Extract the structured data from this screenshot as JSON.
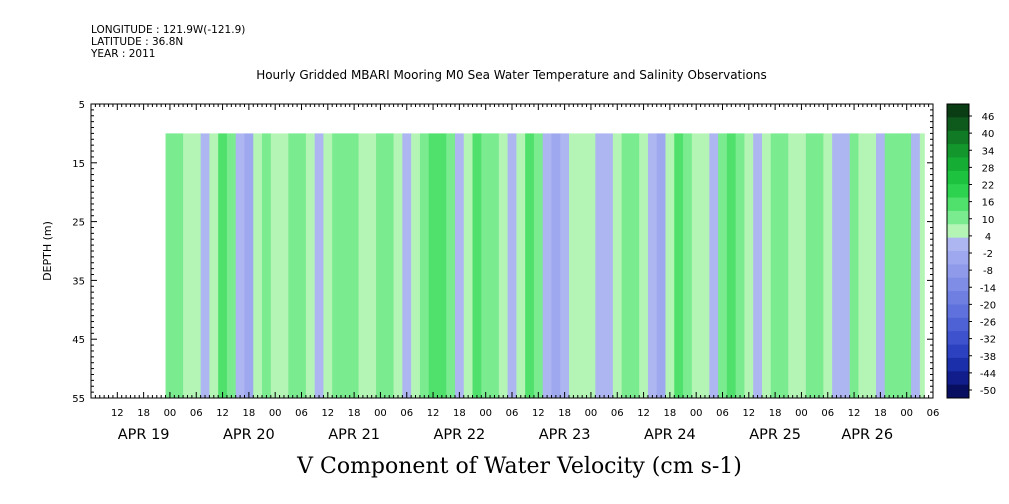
{
  "header": {
    "longitude": "LONGITUDE : 121.9W(-121.9)",
    "latitude": "LATITUDE : 36.8N",
    "year": "YEAR : 2011"
  },
  "chart_data": {
    "type": "heatmap",
    "title": "Hourly Gridded MBARI Mooring M0 Sea Water Temperature and Salinity Observations",
    "xlabel": "V Component of Water Velocity (cm s-1)",
    "ylabel": "DEPTH (m)",
    "ylim": [
      5,
      55
    ],
    "y_reversed": true,
    "y_ticks": [
      "5",
      "15",
      "25",
      "35",
      "45",
      "55"
    ],
    "hour_tick_labels": [
      "12",
      "18",
      "00",
      "06",
      "12",
      "18",
      "00",
      "06",
      "12",
      "18",
      "00",
      "06",
      "12",
      "18",
      "00",
      "06",
      "12",
      "18",
      "00",
      "06",
      "12",
      "18",
      "00",
      "06",
      "12",
      "18",
      "00",
      "06",
      "12",
      "18",
      "00",
      "06"
    ],
    "day_labels": [
      "APR 19",
      "APR 20",
      "APR 21",
      "APR 22",
      "APR 23",
      "APR 24",
      "APR 25",
      "APR 26"
    ],
    "time_range_hours": [
      0,
      192
    ],
    "data_time_range_hours": [
      17,
      190
    ],
    "data_depth_range": [
      10,
      55
    ],
    "colorbar": {
      "levels": [
        "46",
        "40",
        "34",
        "28",
        "22",
        "16",
        "10",
        "4",
        "-2",
        "-8",
        "-14",
        "-20",
        "-26",
        "-32",
        "-38",
        "-44",
        "-50"
      ],
      "range": [
        -50,
        50
      ],
      "positive_colors": [
        "#0a3d14",
        "#0e5a1c",
        "#117a24",
        "#13962c",
        "#16ad34",
        "#1dc33e",
        "#2dd24f",
        "#50e06c",
        "#7aeb8f",
        "#b4f5b6"
      ],
      "negative_colors": [
        "#aeb6f2",
        "#9ea8ee",
        "#8f9bea",
        "#7f8de6",
        "#6f7fe1",
        "#5f71dc",
        "#4e62d6",
        "#3d52cc",
        "#2c41bf",
        "#1c2faa",
        "#101d8a",
        "#080f60"
      ]
    },
    "bands": [
      {
        "t": 17,
        "v": 6
      },
      {
        "t": 19,
        "v": 10
      },
      {
        "t": 21,
        "v": 5
      },
      {
        "t": 23,
        "v": 1
      },
      {
        "t": 25,
        "v": -3
      },
      {
        "t": 27,
        "v": 4
      },
      {
        "t": 29,
        "v": 12
      },
      {
        "t": 31,
        "v": 9
      },
      {
        "t": 33,
        "v": -4
      },
      {
        "t": 35,
        "v": -6
      },
      {
        "t": 37,
        "v": 3
      },
      {
        "t": 39,
        "v": 8
      },
      {
        "t": 41,
        "v": 5
      },
      {
        "t": 43,
        "v": 2
      },
      {
        "t": 45,
        "v": 7
      },
      {
        "t": 47,
        "v": 6
      },
      {
        "t": 49,
        "v": 3
      },
      {
        "t": 51,
        "v": -5
      },
      {
        "t": 53,
        "v": 2
      },
      {
        "t": 55,
        "v": 8
      },
      {
        "t": 57,
        "v": 11
      },
      {
        "t": 59,
        "v": 9
      },
      {
        "t": 61,
        "v": 3
      },
      {
        "t": 63,
        "v": 4
      },
      {
        "t": 65,
        "v": 7
      },
      {
        "t": 67,
        "v": 8
      },
      {
        "t": 69,
        "v": 4
      },
      {
        "t": 71,
        "v": -4
      },
      {
        "t": 73,
        "v": 3
      },
      {
        "t": 75,
        "v": 9
      },
      {
        "t": 77,
        "v": 14
      },
      {
        "t": 79,
        "v": 12
      },
      {
        "t": 81,
        "v": 6
      },
      {
        "t": 83,
        "v": -2
      },
      {
        "t": 85,
        "v": 5
      },
      {
        "t": 87,
        "v": 13
      },
      {
        "t": 89,
        "v": 10
      },
      {
        "t": 91,
        "v": 6
      },
      {
        "t": 93,
        "v": 1
      },
      {
        "t": 95,
        "v": -3
      },
      {
        "t": 97,
        "v": 4
      },
      {
        "t": 99,
        "v": 12
      },
      {
        "t": 101,
        "v": 6
      },
      {
        "t": 103,
        "v": -2
      },
      {
        "t": 105,
        "v": -6
      },
      {
        "t": 107,
        "v": -3
      },
      {
        "t": 109,
        "v": 5
      },
      {
        "t": 111,
        "v": 4
      },
      {
        "t": 113,
        "v": 3
      },
      {
        "t": 115,
        "v": -5
      },
      {
        "t": 117,
        "v": -4
      },
      {
        "t": 119,
        "v": 3
      },
      {
        "t": 121,
        "v": 8
      },
      {
        "t": 123,
        "v": 7
      },
      {
        "t": 125,
        "v": 3
      },
      {
        "t": 127,
        "v": -4
      },
      {
        "t": 129,
        "v": -7
      },
      {
        "t": 131,
        "v": 4
      },
      {
        "t": 133,
        "v": 13
      },
      {
        "t": 135,
        "v": 10
      },
      {
        "t": 137,
        "v": 5
      },
      {
        "t": 139,
        "v": 4
      },
      {
        "t": 141,
        "v": -3
      },
      {
        "t": 143,
        "v": 6
      },
      {
        "t": 145,
        "v": 12
      },
      {
        "t": 147,
        "v": 9
      },
      {
        "t": 149,
        "v": 5
      },
      {
        "t": 151,
        "v": -4
      },
      {
        "t": 153,
        "v": 4
      },
      {
        "t": 155,
        "v": 11
      },
      {
        "t": 157,
        "v": 7
      },
      {
        "t": 159,
        "v": 3
      },
      {
        "t": 161,
        "v": 5
      },
      {
        "t": 163,
        "v": 10
      },
      {
        "t": 165,
        "v": 8
      },
      {
        "t": 167,
        "v": 4
      },
      {
        "t": 169,
        "v": -3
      },
      {
        "t": 171,
        "v": -2
      },
      {
        "t": 173,
        "v": 7
      },
      {
        "t": 175,
        "v": 5
      },
      {
        "t": 177,
        "v": 2
      },
      {
        "t": 179,
        "v": -3
      },
      {
        "t": 181,
        "v": 6
      },
      {
        "t": 183,
        "v": 11
      },
      {
        "t": 185,
        "v": 8
      },
      {
        "t": 187,
        "v": -5
      },
      {
        "t": 189,
        "v": 3
      }
    ]
  }
}
